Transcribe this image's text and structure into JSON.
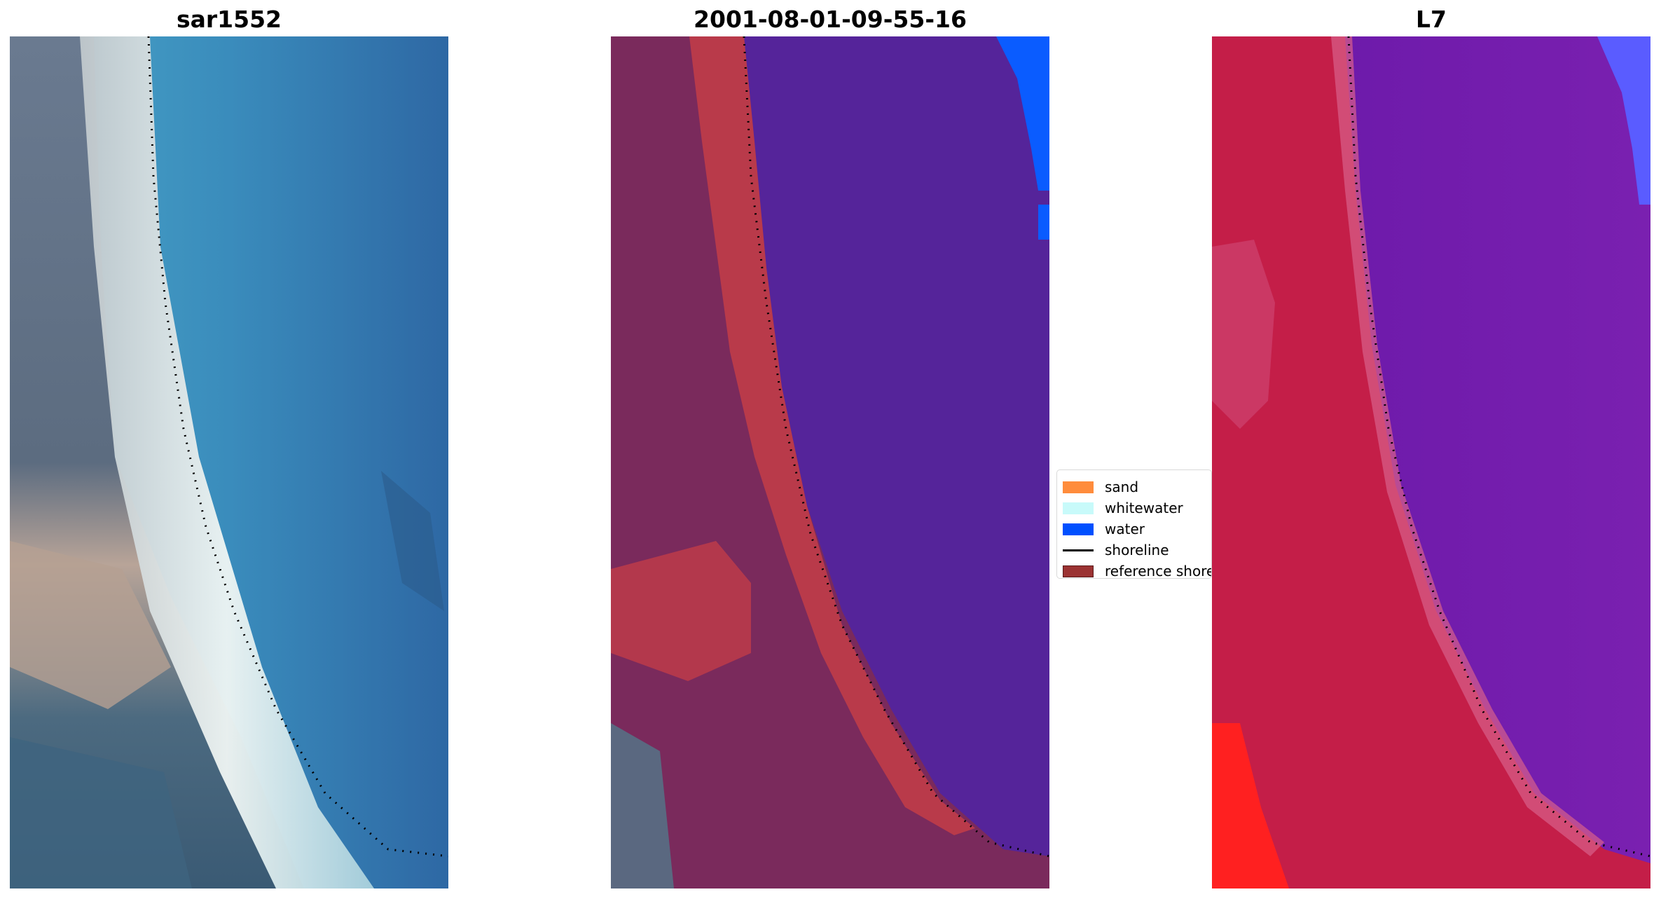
{
  "panels": [
    {
      "title": "sar1552"
    },
    {
      "title": "2001-08-01-09-55-16"
    },
    {
      "title": "L7"
    }
  ],
  "legend": {
    "items": [
      {
        "label": "sand",
        "color": "#ff8c3c",
        "kind": "patch"
      },
      {
        "label": "whitewater",
        "color": "#c8fafa",
        "kind": "patch"
      },
      {
        "label": "water",
        "color": "#0050ff",
        "kind": "patch"
      },
      {
        "label": "shoreline",
        "color": "#000000",
        "kind": "line"
      },
      {
        "label": "reference shoreline",
        "color": "#9b3232",
        "kind": "patch"
      }
    ]
  },
  "colors": {
    "true_color_water": "#3a8cb8",
    "true_color_deep": "#2e64a0",
    "true_color_surf": "#e8f0f0",
    "true_color_land": "#5a7088",
    "classified_land": "#7a2a5c",
    "classified_sand": "#b93a4a",
    "classified_water": "#55249a",
    "classified_ocean_blue": "#0a5cff",
    "false_color_land": "#c41e48",
    "false_color_water": "#6a18a8",
    "false_color_red": "#ff2020",
    "false_color_blue": "#5a5cff"
  }
}
